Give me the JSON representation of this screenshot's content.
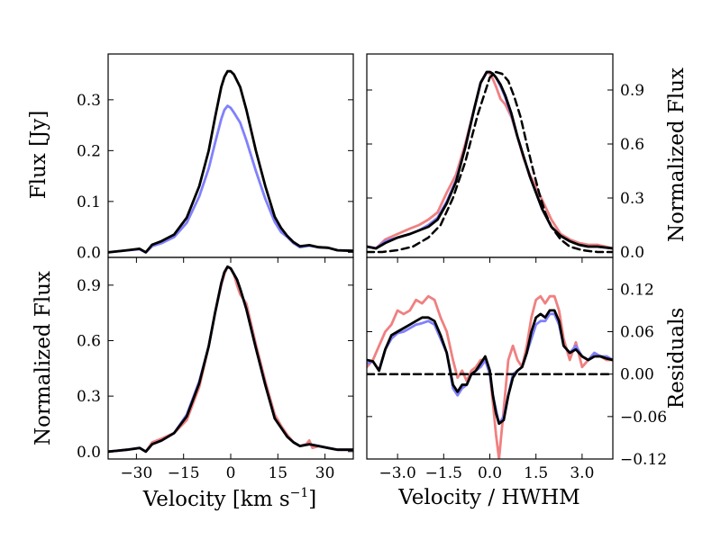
{
  "figure": {
    "background": "#ffffff"
  },
  "colors": {
    "red": "#f08080",
    "blue": "#8080ff",
    "black": "#000000"
  },
  "chart_data": [
    {
      "id": "top_left",
      "type": "line",
      "title": "",
      "xlabel": "",
      "ylabel": "Flux [Jy]",
      "ylabel_side": "left",
      "xlim": [
        -39,
        39
      ],
      "ylim": [
        -0.01,
        0.39
      ],
      "xticks": [],
      "xtick_labels": [],
      "yticks": [
        0.0,
        0.1,
        0.2,
        0.3
      ],
      "ytick_labels": [
        "0.0",
        "0.1",
        "0.2",
        "0.3"
      ],
      "ytick_side": "left",
      "grid": false,
      "series": [
        {
          "color": "#8080ff",
          "x": [
            -39,
            -33,
            -29,
            -27,
            -25,
            -22,
            -18,
            -14,
            -10,
            -7,
            -5,
            -3,
            -2,
            -1,
            0,
            1,
            3,
            5,
            8,
            11,
            14,
            16,
            18,
            20,
            22,
            25,
            28,
            31,
            34,
            39
          ],
          "y": [
            0.0,
            0.004,
            0.006,
            0.0,
            0.012,
            0.018,
            0.03,
            0.058,
            0.11,
            0.165,
            0.215,
            0.262,
            0.28,
            0.288,
            0.284,
            0.275,
            0.255,
            0.22,
            0.16,
            0.105,
            0.06,
            0.04,
            0.03,
            0.018,
            0.01,
            0.013,
            0.01,
            0.009,
            0.004,
            0.003
          ]
        },
        {
          "color": "#000000",
          "x": [
            -39,
            -33,
            -29,
            -27,
            -25,
            -22,
            -18,
            -14,
            -10,
            -7,
            -5,
            -3,
            -2,
            -1,
            0,
            1,
            3,
            5,
            8,
            11,
            14,
            16,
            18,
            20,
            22,
            25,
            28,
            31,
            34,
            39
          ],
          "y": [
            0.0,
            0.004,
            0.007,
            0.0,
            0.015,
            0.022,
            0.035,
            0.068,
            0.13,
            0.2,
            0.265,
            0.325,
            0.345,
            0.356,
            0.356,
            0.35,
            0.325,
            0.28,
            0.2,
            0.13,
            0.07,
            0.048,
            0.032,
            0.02,
            0.012,
            0.014,
            0.01,
            0.009,
            0.004,
            0.003
          ]
        }
      ]
    },
    {
      "id": "top_right",
      "type": "line",
      "title": "",
      "xlabel": "",
      "ylabel": "Normalized Flux",
      "ylabel_side": "right",
      "xlim": [
        -4.0,
        4.0
      ],
      "ylim": [
        -0.03,
        1.1
      ],
      "xticks": [],
      "xtick_labels": [],
      "yticks": [
        0.0,
        0.3,
        0.6,
        0.9
      ],
      "ytick_labels": [
        "0.0",
        "0.3",
        "0.6",
        "0.9"
      ],
      "ytick_side": "right",
      "grid": false,
      "series": [
        {
          "color": "#f08080",
          "x": [
            -4.0,
            -3.7,
            -3.4,
            -3.0,
            -2.6,
            -2.3,
            -2.0,
            -1.7,
            -1.4,
            -1.1,
            -0.8,
            -0.5,
            -0.3,
            -0.1,
            0.0,
            0.1,
            0.2,
            0.35,
            0.5,
            0.7,
            0.9,
            1.1,
            1.3,
            1.5,
            1.7,
            2.0,
            2.3,
            2.6,
            2.9,
            3.2,
            3.5,
            4.0
          ],
          "y": [
            0.03,
            0.02,
            0.07,
            0.1,
            0.13,
            0.15,
            0.18,
            0.22,
            0.33,
            0.43,
            0.6,
            0.8,
            0.94,
            1.0,
            0.99,
            0.96,
            0.92,
            0.85,
            0.82,
            0.75,
            0.64,
            0.52,
            0.43,
            0.36,
            0.29,
            0.18,
            0.1,
            0.07,
            0.05,
            0.04,
            0.04,
            0.02
          ]
        },
        {
          "color": "#8080ff",
          "x": [
            -4.0,
            -3.7,
            -3.4,
            -3.0,
            -2.6,
            -2.3,
            -2.0,
            -1.7,
            -1.4,
            -1.1,
            -0.8,
            -0.5,
            -0.3,
            -0.1,
            0.0,
            0.1,
            0.2,
            0.35,
            0.5,
            0.7,
            0.9,
            1.1,
            1.3,
            1.5,
            1.7,
            2.0,
            2.3,
            2.6,
            2.9,
            3.2,
            3.5,
            4.0
          ],
          "y": [
            0.03,
            0.02,
            0.06,
            0.08,
            0.1,
            0.12,
            0.15,
            0.19,
            0.28,
            0.4,
            0.58,
            0.8,
            0.94,
            1.0,
            1.0,
            0.99,
            0.97,
            0.92,
            0.86,
            0.76,
            0.64,
            0.53,
            0.42,
            0.33,
            0.24,
            0.14,
            0.09,
            0.06,
            0.04,
            0.03,
            0.03,
            0.02
          ]
        },
        {
          "color": "#000000",
          "x": [
            -4.0,
            -3.7,
            -3.4,
            -3.0,
            -2.6,
            -2.3,
            -2.0,
            -1.7,
            -1.4,
            -1.1,
            -0.8,
            -0.5,
            -0.3,
            -0.1,
            0.0,
            0.1,
            0.2,
            0.35,
            0.5,
            0.7,
            0.9,
            1.1,
            1.3,
            1.5,
            1.7,
            2.0,
            2.3,
            2.6,
            2.9,
            3.2,
            3.5,
            4.0
          ],
          "y": [
            0.03,
            0.02,
            0.05,
            0.08,
            0.1,
            0.12,
            0.14,
            0.18,
            0.27,
            0.39,
            0.58,
            0.8,
            0.94,
            1.0,
            1.0,
            0.99,
            0.97,
            0.93,
            0.87,
            0.77,
            0.64,
            0.53,
            0.42,
            0.33,
            0.24,
            0.14,
            0.09,
            0.06,
            0.04,
            0.03,
            0.03,
            0.02
          ]
        },
        {
          "color": "#000000",
          "dashed": true,
          "x": [
            -4.0,
            -3.5,
            -3.0,
            -2.5,
            -2.0,
            -1.6,
            -1.2,
            -0.8,
            -0.4,
            0.0,
            0.2,
            0.4,
            0.6,
            0.8,
            1.0,
            1.2,
            1.4,
            1.6,
            1.8,
            2.0,
            2.3,
            2.6,
            3.0,
            3.5,
            4.0
          ],
          "y": [
            0.0,
            0.0,
            0.01,
            0.03,
            0.08,
            0.15,
            0.3,
            0.5,
            0.76,
            0.97,
            1.0,
            0.99,
            0.95,
            0.86,
            0.75,
            0.6,
            0.46,
            0.33,
            0.22,
            0.14,
            0.07,
            0.03,
            0.01,
            0.0,
            0.0
          ]
        }
      ]
    },
    {
      "id": "bottom_left",
      "type": "line",
      "title": "",
      "xlabel": "Velocity [km s",
      "xlabel_sup": "−1",
      "xlabel_end": "]",
      "ylabel": "Normalized Flux",
      "ylabel_side": "left",
      "xlim": [
        -39,
        39
      ],
      "ylim": [
        -0.04,
        1.05
      ],
      "xticks": [
        -30,
        -15,
        0,
        15,
        30
      ],
      "xtick_labels": [
        "−30",
        "−15",
        "0",
        "15",
        "30"
      ],
      "yticks": [
        0.0,
        0.3,
        0.6,
        0.9
      ],
      "ytick_labels": [
        "0.0",
        "0.3",
        "0.6",
        "0.9"
      ],
      "ytick_side": "left",
      "grid": false,
      "series": [
        {
          "color": "#f08080",
          "x": [
            -39,
            -33,
            -29,
            -27,
            -25,
            -22,
            -18,
            -14,
            -10,
            -7,
            -5,
            -3,
            -2,
            -1,
            0,
            1,
            2,
            3,
            5,
            8,
            11,
            14,
            16,
            18,
            20,
            22,
            24,
            25,
            26,
            28,
            31,
            34,
            39
          ],
          "y": [
            0.0,
            0.01,
            0.02,
            0.0,
            0.05,
            0.07,
            0.1,
            0.17,
            0.35,
            0.57,
            0.75,
            0.9,
            0.96,
            1.0,
            0.99,
            0.96,
            0.9,
            0.85,
            0.8,
            0.58,
            0.38,
            0.2,
            0.14,
            0.09,
            0.05,
            0.03,
            0.04,
            0.06,
            0.02,
            0.03,
            0.02,
            0.01,
            0.01
          ]
        },
        {
          "color": "#8080ff",
          "x": [
            -39,
            -33,
            -29,
            -27,
            -25,
            -22,
            -18,
            -14,
            -10,
            -7,
            -5,
            -3,
            -2,
            -1,
            0,
            1,
            2,
            3,
            5,
            8,
            11,
            14,
            16,
            18,
            20,
            22,
            25,
            28,
            31,
            34,
            39
          ],
          "y": [
            0.0,
            0.01,
            0.02,
            0.0,
            0.04,
            0.06,
            0.1,
            0.2,
            0.38,
            0.57,
            0.75,
            0.91,
            0.97,
            1.0,
            0.99,
            0.96,
            0.93,
            0.88,
            0.77,
            0.56,
            0.36,
            0.18,
            0.13,
            0.08,
            0.05,
            0.03,
            0.04,
            0.03,
            0.02,
            0.01,
            0.01
          ]
        },
        {
          "color": "#000000",
          "x": [
            -39,
            -33,
            -29,
            -27,
            -25,
            -22,
            -18,
            -14,
            -10,
            -7,
            -5,
            -3,
            -2,
            -1,
            0,
            1,
            2,
            3,
            5,
            8,
            11,
            14,
            16,
            18,
            20,
            22,
            25,
            28,
            31,
            34,
            39
          ],
          "y": [
            0.0,
            0.01,
            0.02,
            0.0,
            0.04,
            0.06,
            0.1,
            0.19,
            0.37,
            0.57,
            0.75,
            0.91,
            0.97,
            1.0,
            0.99,
            0.96,
            0.93,
            0.88,
            0.77,
            0.56,
            0.36,
            0.18,
            0.13,
            0.08,
            0.05,
            0.03,
            0.04,
            0.03,
            0.02,
            0.01,
            0.01
          ]
        }
      ]
    },
    {
      "id": "bottom_right",
      "type": "line",
      "title": "",
      "xlabel": "Velocity / HWHM",
      "ylabel": "Residuals",
      "ylabel_side": "right",
      "xlim": [
        -4.0,
        4.0
      ],
      "ylim": [
        -0.12,
        0.165
      ],
      "xticks": [
        -3.0,
        -1.5,
        0.0,
        1.5,
        3.0
      ],
      "xtick_labels": [
        "−3.0",
        "−1.5",
        "0.0",
        "1.5",
        "3.0"
      ],
      "yticks": [
        -0.12,
        -0.06,
        0.0,
        0.06,
        0.12
      ],
      "ytick_labels": [
        "−0.12",
        "−0.06",
        "0.00",
        "0.06",
        "0.12"
      ],
      "ytick_side": "right",
      "grid": false,
      "series": [
        {
          "color": "#f08080",
          "x": [
            -4.0,
            -3.8,
            -3.6,
            -3.4,
            -3.2,
            -3.0,
            -2.8,
            -2.6,
            -2.4,
            -2.2,
            -2.0,
            -1.8,
            -1.6,
            -1.4,
            -1.2,
            -1.05,
            -0.9,
            -0.75,
            -0.6,
            -0.45,
            -0.3,
            -0.15,
            0.0,
            0.1,
            0.2,
            0.3,
            0.45,
            0.6,
            0.75,
            0.9,
            1.05,
            1.2,
            1.35,
            1.5,
            1.65,
            1.8,
            1.95,
            2.1,
            2.25,
            2.4,
            2.6,
            2.8,
            3.0,
            3.2,
            3.4,
            3.6,
            3.8,
            4.0
          ],
          "y": [
            0.01,
            0.02,
            0.04,
            0.06,
            0.07,
            0.09,
            0.085,
            0.09,
            0.105,
            0.1,
            0.11,
            0.105,
            0.08,
            0.06,
            0.02,
            -0.005,
            0.005,
            -0.01,
            0.005,
            0.01,
            0.02,
            0.02,
            0.0,
            -0.04,
            -0.085,
            -0.12,
            -0.05,
            0.02,
            0.04,
            0.02,
            0.01,
            0.04,
            0.08,
            0.105,
            0.11,
            0.1,
            0.11,
            0.11,
            0.09,
            0.05,
            0.02,
            0.045,
            0.01,
            0.02,
            0.03,
            0.025,
            0.02,
            0.02
          ]
        },
        {
          "color": "#8080ff",
          "x": [
            -4.0,
            -3.8,
            -3.6,
            -3.4,
            -3.2,
            -3.0,
            -2.8,
            -2.6,
            -2.4,
            -2.2,
            -2.0,
            -1.8,
            -1.6,
            -1.4,
            -1.2,
            -1.05,
            -0.9,
            -0.75,
            -0.6,
            -0.45,
            -0.3,
            -0.15,
            0.0,
            0.1,
            0.2,
            0.3,
            0.45,
            0.6,
            0.75,
            0.9,
            1.05,
            1.2,
            1.35,
            1.5,
            1.65,
            1.8,
            1.95,
            2.1,
            2.25,
            2.4,
            2.6,
            2.8,
            3.0,
            3.2,
            3.4,
            3.6,
            3.8,
            4.0
          ],
          "y": [
            0.015,
            0.018,
            0.005,
            0.035,
            0.05,
            0.058,
            0.06,
            0.065,
            0.07,
            0.072,
            0.075,
            0.07,
            0.05,
            0.03,
            -0.02,
            -0.03,
            -0.02,
            -0.015,
            0.0,
            0.005,
            0.01,
            0.02,
            0.0,
            -0.03,
            -0.05,
            -0.07,
            -0.06,
            -0.03,
            0.0,
            0.005,
            0.01,
            0.03,
            0.05,
            0.07,
            0.075,
            0.075,
            0.085,
            0.085,
            0.07,
            0.04,
            0.03,
            0.04,
            0.025,
            0.02,
            0.03,
            0.025,
            0.025,
            0.02
          ]
        },
        {
          "color": "#000000",
          "x": [
            -4.0,
            -3.8,
            -3.6,
            -3.4,
            -3.2,
            -3.0,
            -2.8,
            -2.6,
            -2.4,
            -2.2,
            -2.0,
            -1.8,
            -1.6,
            -1.4,
            -1.2,
            -1.05,
            -0.9,
            -0.75,
            -0.6,
            -0.45,
            -0.3,
            -0.15,
            0.0,
            0.1,
            0.2,
            0.3,
            0.45,
            0.6,
            0.75,
            0.9,
            1.05,
            1.2,
            1.35,
            1.5,
            1.65,
            1.8,
            1.95,
            2.1,
            2.25,
            2.4,
            2.6,
            2.8,
            3.0,
            3.2,
            3.4,
            3.6,
            3.8,
            4.0
          ],
          "y": [
            0.02,
            0.018,
            0.005,
            0.035,
            0.055,
            0.06,
            0.065,
            0.07,
            0.075,
            0.08,
            0.08,
            0.075,
            0.055,
            0.03,
            -0.015,
            -0.025,
            -0.015,
            -0.015,
            0.0,
            0.005,
            0.015,
            0.025,
            0.005,
            -0.03,
            -0.055,
            -0.07,
            -0.065,
            -0.03,
            -0.005,
            0.005,
            0.01,
            0.03,
            0.06,
            0.08,
            0.085,
            0.08,
            0.09,
            0.09,
            0.075,
            0.04,
            0.03,
            0.035,
            0.025,
            0.02,
            0.025,
            0.025,
            0.022,
            0.02
          ]
        },
        {
          "color": "#000000",
          "dashed": true,
          "x": [
            -4.0,
            4.0
          ],
          "y": [
            0.0,
            0.0
          ]
        }
      ]
    }
  ]
}
